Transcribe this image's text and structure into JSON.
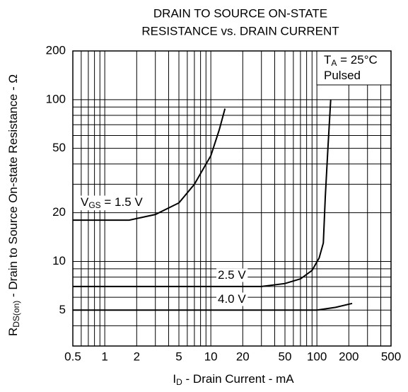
{
  "chart_data": {
    "type": "line",
    "title": [
      "DRAIN TO SOURCE ON-STATE",
      "RESISTANCE vs. DRAIN CURRENT"
    ],
    "x_label": [
      "I",
      "D",
      " - Drain Current - mA"
    ],
    "y_label": [
      "R",
      "DS(on)",
      " - Drain to Source On-state Resistance - Ω"
    ],
    "annotation": [
      [
        "T",
        "A",
        " = 25°C"
      ],
      [
        "Pulsed"
      ]
    ],
    "label_subscript_index": 1,
    "xscale": "log",
    "yscale": "log",
    "xlim": [
      0.5,
      500
    ],
    "ylim": [
      3,
      200
    ],
    "xticks": [
      0.5,
      1,
      2,
      5,
      10,
      20,
      50,
      100,
      200,
      500
    ],
    "yticks": [
      5,
      10,
      20,
      50,
      100,
      200
    ],
    "grid": true,
    "minor_grid": true,
    "color": "#000000",
    "series": [
      {
        "label": [
          "V",
          "GS",
          " = 1.5 V"
        ],
        "x": [
          0.5,
          1,
          1.7,
          3,
          5,
          7,
          10,
          12,
          13.6
        ],
        "values": [
          18,
          18,
          18,
          19.5,
          23,
          30,
          45,
          65,
          88
        ]
      },
      {
        "label": [
          "2.5 V"
        ],
        "x": [
          0.5,
          30,
          50,
          70,
          90,
          105,
          115,
          120,
          127,
          135
        ],
        "values": [
          7,
          7,
          7.3,
          7.8,
          8.8,
          10.5,
          13,
          25,
          50,
          100
        ]
      },
      {
        "label": [
          "4.0 V"
        ],
        "x": [
          0.5,
          100,
          150,
          215
        ],
        "values": [
          5,
          5,
          5.2,
          5.5
        ]
      }
    ]
  }
}
